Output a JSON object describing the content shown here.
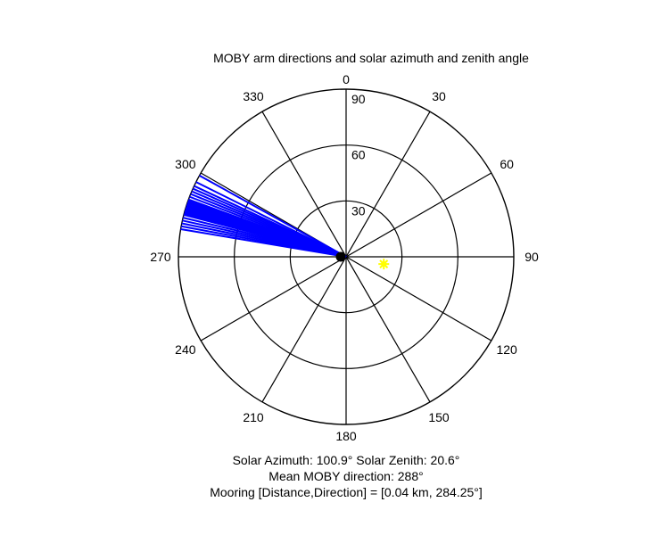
{
  "chart_data": {
    "type": "polar",
    "title": "MOBY arm directions and solar azimuth and zenith angle",
    "theta_ticks": [
      "0",
      "30",
      "60",
      "90",
      "120",
      "150",
      "180",
      "210",
      "240",
      "270",
      "300",
      "330"
    ],
    "radial_ticks": [
      "30",
      "60",
      "90"
    ],
    "radial_max": 90,
    "arm_directions_deg": [
      279.5,
      280.5,
      281.5,
      282.5,
      283.5,
      284.5,
      285,
      285.5,
      286,
      286.5,
      287,
      287.5,
      288,
      288.5,
      289,
      289.5,
      290,
      291,
      292,
      293,
      294,
      295,
      296.5,
      299
    ],
    "sun": {
      "azimuth": 100.9,
      "zenith": 20.6,
      "color": "#ffff00"
    },
    "arm_color": "#0000ff",
    "center_color": "#000000"
  },
  "footer": {
    "solar": "Solar Azimuth: 100.9°   Solar Zenith: 20.6°",
    "mean": "Mean MOBY direction: 288°",
    "mooring": "Mooring [Distance,Direction] = [0.04 km, 284.25°]"
  }
}
